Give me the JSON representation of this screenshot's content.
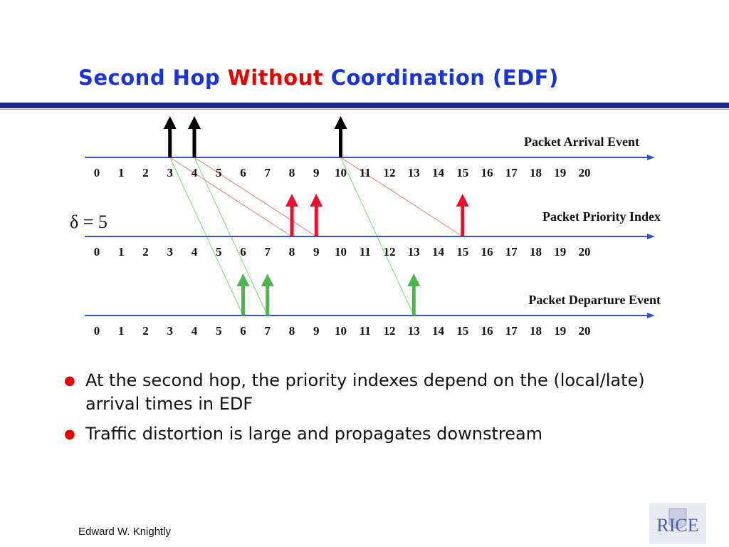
{
  "title": {
    "part1": "Second Hop ",
    "highlight": "Without",
    "part2": " Coordination (EDF)"
  },
  "colors": {
    "title": "#1a33d6",
    "highlight": "#e60000",
    "axis": "#2b54d6",
    "arrival": "#000000",
    "priority": "#e8102e",
    "departure": "#4cb64c",
    "bullet": "#e60000"
  },
  "delta_label": "δ = 5",
  "timelines": [
    {
      "name": "arrival",
      "label": "Packet Arrival Event",
      "ticks": [
        "0",
        "1",
        "2",
        "3",
        "4",
        "5",
        "6",
        "7",
        "8",
        "9",
        "10",
        "11",
        "12",
        "13",
        "14",
        "15",
        "16",
        "17",
        "18",
        "19",
        "20"
      ],
      "arrows": [
        3,
        4,
        10
      ]
    },
    {
      "name": "priority",
      "label": "Packet Priority Index",
      "ticks": [
        "0",
        "1",
        "2",
        "3",
        "4",
        "5",
        "6",
        "7",
        "8",
        "9",
        "10",
        "11",
        "12",
        "13",
        "14",
        "15",
        "16",
        "17",
        "18",
        "19",
        "20"
      ],
      "arrows": [
        8,
        9,
        15
      ]
    },
    {
      "name": "departure",
      "label": "Packet Departure Event",
      "ticks": [
        "0",
        "1",
        "2",
        "3",
        "4",
        "5",
        "6",
        "7",
        "8",
        "9",
        "10",
        "11",
        "12",
        "13",
        "14",
        "15",
        "16",
        "17",
        "18",
        "19",
        "20"
      ],
      "arrows": [
        6,
        7,
        13
      ]
    }
  ],
  "mappings": {
    "arrival_to_priority": [
      [
        3,
        8
      ],
      [
        4,
        9
      ],
      [
        10,
        15
      ]
    ],
    "arrival_to_departure": [
      [
        3,
        6
      ],
      [
        4,
        7
      ],
      [
        10,
        13
      ]
    ]
  },
  "bullets": [
    "At the second hop, the priority indexes depend on the (local/late) arrival times in EDF",
    "Traffic distortion is large and propagates downstream"
  ],
  "footer": "Edward W. Knightly",
  "logo_text": "RICE"
}
